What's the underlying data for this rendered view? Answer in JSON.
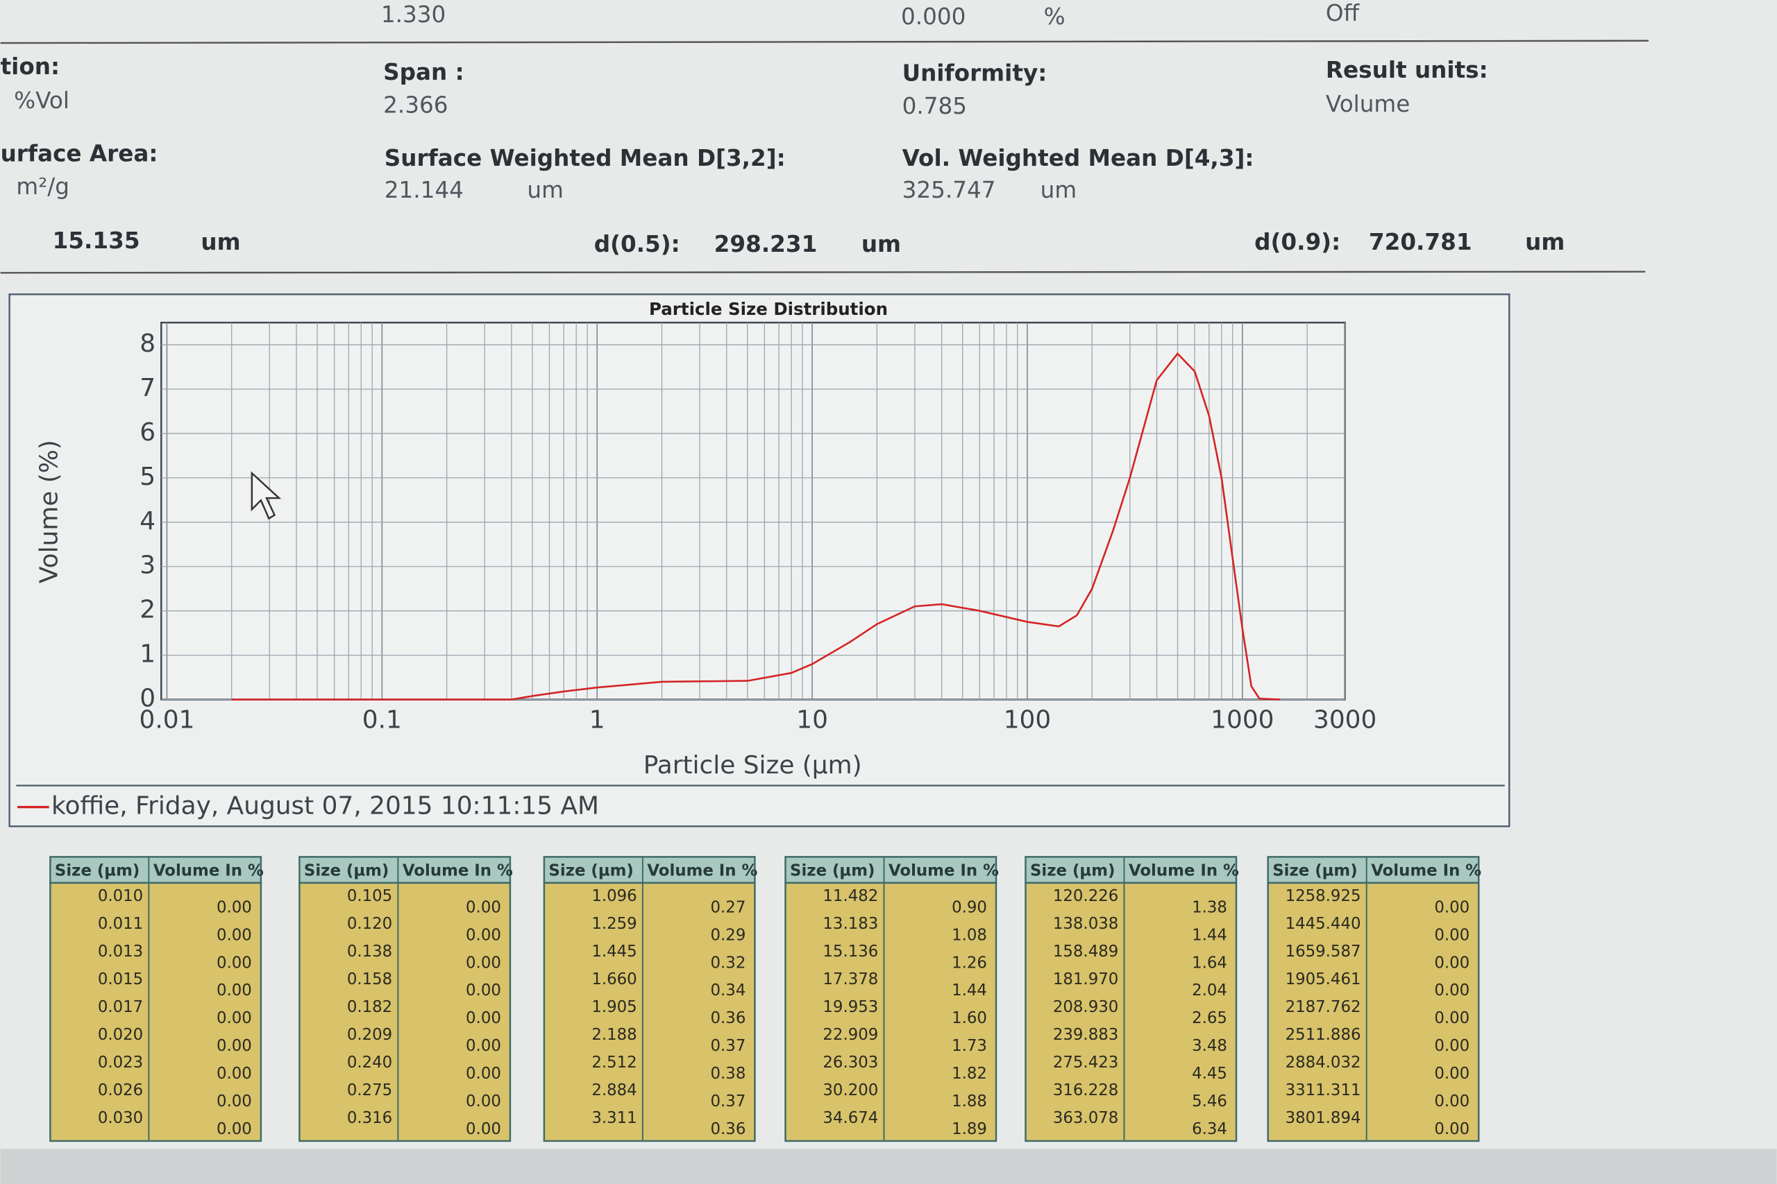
{
  "header": {
    "top_row": [
      "1.330",
      "0.000",
      "%",
      "Off"
    ],
    "fields": [
      {
        "label": "tion:",
        "value": "%Vol"
      },
      {
        "label": "Span :",
        "value": "2.366"
      },
      {
        "label": "Uniformity:",
        "value": "0.785"
      },
      {
        "label": "Result units:",
        "value": "Volume"
      },
      {
        "label": "urface Area:",
        "value": "m²/g"
      },
      {
        "label": "Surface Weighted Mean D[3,2]:",
        "value": "21.144",
        "unit": "um"
      },
      {
        "label": "Vol. Weighted Mean D[4,3]:",
        "value": "325.747",
        "unit": "um"
      }
    ],
    "results": [
      {
        "value": "15.135",
        "unit": "um"
      },
      {
        "label": "d(0.5):",
        "value": "298.231",
        "unit": "um"
      },
      {
        "label": "d(0.9):",
        "value": "720.781",
        "unit": "um"
      }
    ]
  },
  "chart_data": {
    "type": "line",
    "title": "Particle Size Distribution",
    "x_label": "Particle Size (µm)",
    "y_label": "Volume (%)",
    "log_x": true,
    "grid": true,
    "minor_grid": true,
    "xlim": [
      0.01,
      3000
    ],
    "ylim": [
      0,
      8.5
    ],
    "xticks": [
      0.01,
      0.1,
      1,
      10,
      100,
      1000,
      3000
    ],
    "yticks": [
      0,
      1,
      2,
      3,
      4,
      5,
      6,
      7,
      8
    ],
    "series": [
      {
        "name": "koffie, Friday, August 07, 2015 10:11:15 AM",
        "color": "#d42424",
        "x": [
          0.02,
          0.1,
          0.4,
          0.5,
          0.7,
          1,
          2,
          5,
          8,
          10,
          15,
          20,
          30,
          40,
          60,
          100,
          140,
          170,
          200,
          250,
          300,
          400,
          500,
          600,
          700,
          800,
          900,
          1000,
          1100,
          1200,
          1500
        ],
        "values": [
          0,
          0,
          0,
          0.08,
          0.18,
          0.27,
          0.4,
          0.42,
          0.6,
          0.8,
          1.3,
          1.7,
          2.1,
          2.15,
          2.0,
          1.75,
          1.65,
          1.9,
          2.5,
          3.8,
          5.0,
          7.2,
          7.8,
          7.4,
          6.4,
          5.0,
          3.2,
          1.6,
          0.3,
          0.02,
          0
        ]
      }
    ]
  },
  "tables": [
    {
      "headers": [
        "Size (µm)",
        "Volume In %"
      ],
      "rows": [
        [
          "0.010",
          "0.00"
        ],
        [
          "0.011",
          "0.00"
        ],
        [
          "0.013",
          "0.00"
        ],
        [
          "0.015",
          "0.00"
        ],
        [
          "0.017",
          "0.00"
        ],
        [
          "0.020",
          "0.00"
        ],
        [
          "0.023",
          "0.00"
        ],
        [
          "0.026",
          "0.00"
        ],
        [
          "0.030",
          "0.00"
        ]
      ]
    },
    {
      "headers": [
        "Size (µm)",
        "Volume In %"
      ],
      "rows": [
        [
          "0.105",
          "0.00"
        ],
        [
          "0.120",
          "0.00"
        ],
        [
          "0.138",
          "0.00"
        ],
        [
          "0.158",
          "0.00"
        ],
        [
          "0.182",
          "0.00"
        ],
        [
          "0.209",
          "0.00"
        ],
        [
          "0.240",
          "0.00"
        ],
        [
          "0.275",
          "0.00"
        ],
        [
          "0.316",
          "0.00"
        ]
      ]
    },
    {
      "headers": [
        "Size (µm)",
        "Volume In %"
      ],
      "rows": [
        [
          "1.096",
          "0.27"
        ],
        [
          "1.259",
          "0.29"
        ],
        [
          "1.445",
          "0.32"
        ],
        [
          "1.660",
          "0.34"
        ],
        [
          "1.905",
          "0.36"
        ],
        [
          "2.188",
          "0.37"
        ],
        [
          "2.512",
          "0.38"
        ],
        [
          "2.884",
          "0.37"
        ],
        [
          "3.311",
          "0.36"
        ]
      ]
    },
    {
      "headers": [
        "Size (µm)",
        "Volume In %"
      ],
      "rows": [
        [
          "11.482",
          "0.90"
        ],
        [
          "13.183",
          "1.08"
        ],
        [
          "15.136",
          "1.26"
        ],
        [
          "17.378",
          "1.44"
        ],
        [
          "19.953",
          "1.60"
        ],
        [
          "22.909",
          "1.73"
        ],
        [
          "26.303",
          "1.82"
        ],
        [
          "30.200",
          "1.88"
        ],
        [
          "34.674",
          "1.89"
        ]
      ]
    },
    {
      "headers": [
        "Size (µm)",
        "Volume In %"
      ],
      "rows": [
        [
          "120.226",
          "1.38"
        ],
        [
          "138.038",
          "1.44"
        ],
        [
          "158.489",
          "1.64"
        ],
        [
          "181.970",
          "2.04"
        ],
        [
          "208.930",
          "2.65"
        ],
        [
          "239.883",
          "3.48"
        ],
        [
          "275.423",
          "4.45"
        ],
        [
          "316.228",
          "5.46"
        ],
        [
          "363.078",
          "6.34"
        ]
      ]
    },
    {
      "headers": [
        "Size (µm)",
        "Volume In %"
      ],
      "rows": [
        [
          "1258.925",
          "0.00"
        ],
        [
          "1445.440",
          "0.00"
        ],
        [
          "1659.587",
          "0.00"
        ],
        [
          "1905.461",
          "0.00"
        ],
        [
          "2187.762",
          "0.00"
        ],
        [
          "2511.886",
          "0.00"
        ],
        [
          "2884.032",
          "0.00"
        ],
        [
          "3311.311",
          "0.00"
        ],
        [
          "3801.894",
          "0.00"
        ]
      ]
    }
  ]
}
